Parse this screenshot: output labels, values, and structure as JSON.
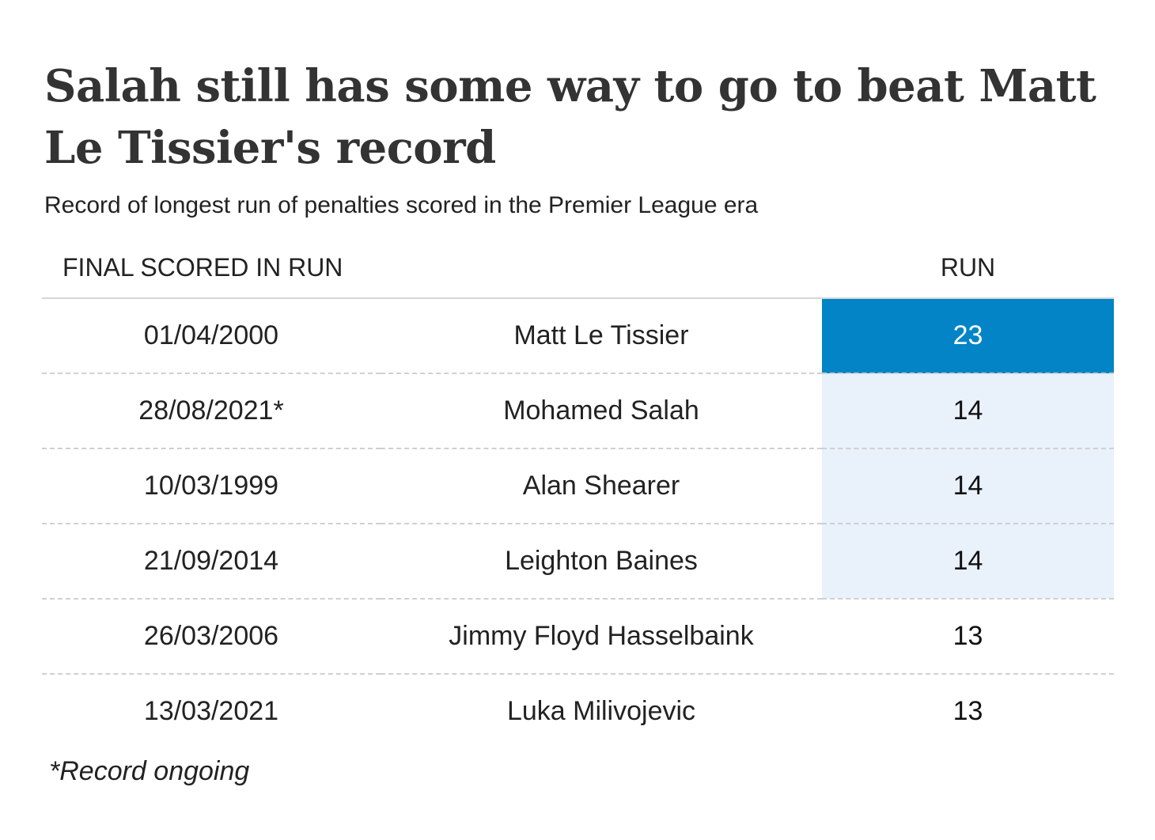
{
  "title": "Salah still has some way to go to beat Matt Le Tissier's record",
  "subtitle": "Record of longest run of penalties scored in the Premier League era",
  "columns": {
    "date": "FINAL SCORED IN RUN",
    "name": "",
    "run": "RUN"
  },
  "rows": [
    {
      "date": "01/04/2000",
      "name": "Matt Le Tissier",
      "run": "23"
    },
    {
      "date": "28/08/2021*",
      "name": "Mohamed Salah",
      "run": "14"
    },
    {
      "date": "10/03/1999",
      "name": "Alan Shearer",
      "run": "14"
    },
    {
      "date": "21/09/2014",
      "name": "Leighton Baines",
      "run": "14"
    },
    {
      "date": "26/03/2006",
      "name": "Jimmy Floyd Hasselbaink",
      "run": "13"
    },
    {
      "date": "13/03/2021",
      "name": "Luka Milivojevic",
      "run": "13"
    }
  ],
  "footnote": "*Record ongoing",
  "colors": {
    "highlight_top": "#0284c7",
    "highlight_top_text": "#ffffff",
    "highlight_tied": "#e9f1fb"
  },
  "chart_data": {
    "type": "table",
    "title": "Salah still has some way to go to beat Matt Le Tissier's record",
    "subtitle": "Record of longest run of penalties scored in the Premier League era",
    "columns": [
      "FINAL SCORED IN RUN",
      "",
      "RUN"
    ],
    "rows": [
      [
        "01/04/2000",
        "Matt Le Tissier",
        23
      ],
      [
        "28/08/2021*",
        "Mohamed Salah",
        14
      ],
      [
        "10/03/1999",
        "Alan Shearer",
        14
      ],
      [
        "21/09/2014",
        "Leighton Baines",
        14
      ],
      [
        "26/03/2006",
        "Jimmy Floyd Hasselbaink",
        13
      ],
      [
        "13/03/2021",
        "Luka Milivojevic",
        13
      ]
    ],
    "footnote": "*Record ongoing"
  }
}
